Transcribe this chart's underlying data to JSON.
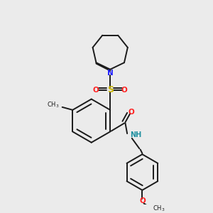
{
  "bg_color": "#ebebeb",
  "bond_color": "#1a1a1a",
  "bond_lw": 1.4,
  "colors": {
    "N": "#2020ff",
    "S": "#c8b400",
    "O": "#ff2020",
    "NH": "#2090a0",
    "C": "#1a1a1a"
  },
  "fs": 7.5
}
